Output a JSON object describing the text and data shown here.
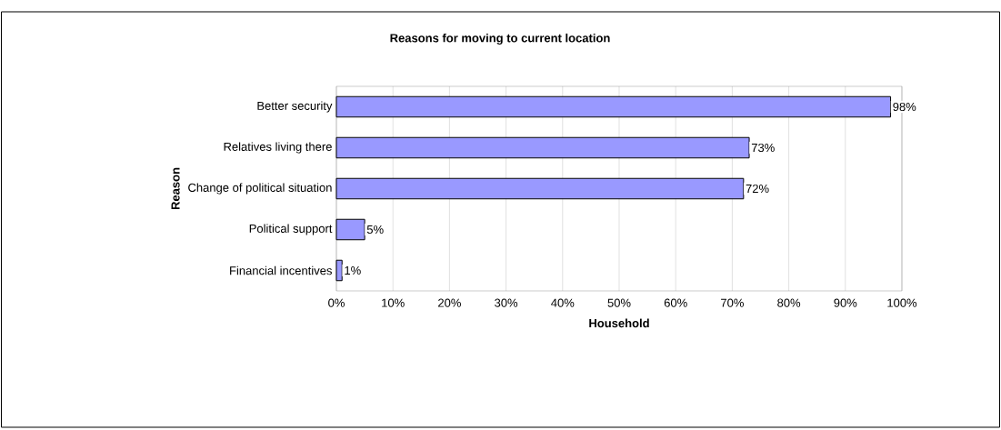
{
  "chart_data": {
    "type": "bar",
    "orientation": "horizontal",
    "title": "Reasons for moving to current location",
    "xlabel": "Household",
    "ylabel": "Reason",
    "categories": [
      "Better security",
      "Relatives living there",
      "Change of political situation",
      "Political support",
      "Financial incentives"
    ],
    "values": [
      98,
      73,
      72,
      5,
      1
    ],
    "value_labels": [
      "98%",
      "73%",
      "72%",
      "5%",
      "1%"
    ],
    "color": "#9999ff",
    "xlim": [
      0,
      100
    ],
    "xticks": [
      {
        "value": 0,
        "label": "0%"
      },
      {
        "value": 10,
        "label": "10%"
      },
      {
        "value": 20,
        "label": "20%"
      },
      {
        "value": 30,
        "label": "30%"
      },
      {
        "value": 40,
        "label": "40%"
      },
      {
        "value": 50,
        "label": "50%"
      },
      {
        "value": 60,
        "label": "60%"
      },
      {
        "value": 70,
        "label": "70%"
      },
      {
        "value": 80,
        "label": "80%"
      },
      {
        "value": 90,
        "label": "90%"
      },
      {
        "value": 100,
        "label": "100%"
      }
    ],
    "grid": "x"
  }
}
